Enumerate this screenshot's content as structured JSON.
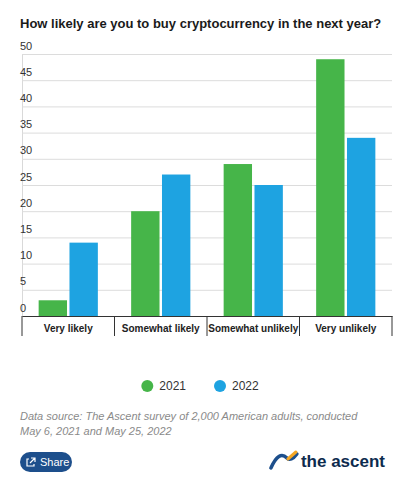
{
  "chart_data": {
    "type": "bar",
    "title": "How likely are you to buy cryptocurrency in the next year?",
    "categories": [
      "Very likely",
      "Somewhat likely",
      "Somewhat unlikely",
      "Very unlikely"
    ],
    "series": [
      {
        "name": "2021",
        "color": "#46b549",
        "values": [
          3,
          20,
          29,
          49
        ]
      },
      {
        "name": "2022",
        "color": "#1ea3e1",
        "values": [
          14,
          27,
          25,
          34
        ]
      }
    ],
    "ylim": [
      0,
      50
    ],
    "yticks": [
      0,
      5,
      10,
      15,
      20,
      25,
      30,
      35,
      40,
      45,
      50
    ],
    "grid": true,
    "legend": "bottom",
    "source": "Data source: The Ascent survey of 2,000 American adults, conducted May 6, 2021 and May 25, 2022",
    "annotations": [
      "Share",
      "the ascent"
    ]
  }
}
